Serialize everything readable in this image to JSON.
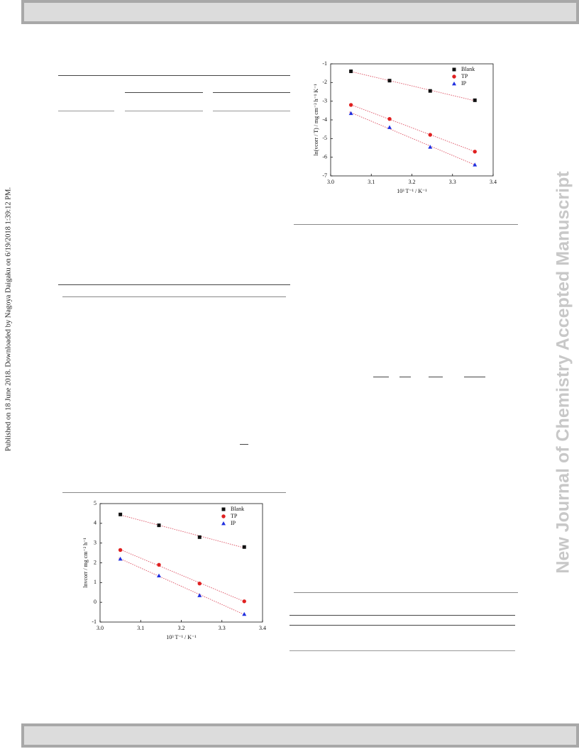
{
  "side_note": "Published on 18 June 2018. Downloaded by Nagoya Daigaku on 6/19/2018 1:39:12 PM.",
  "watermark": "New Journal of Chemistry Accepted Manuscript",
  "chart_data": [
    {
      "type": "scatter",
      "ylabel": "ln(vcorr / T) / mg cm⁻² h⁻¹ K⁻¹",
      "xlabel": "10³ T⁻¹ / K⁻¹",
      "xlim": [
        3.0,
        3.4
      ],
      "xticks": [
        {
          "value": 3.0,
          "label": "3.0"
        },
        3.1,
        3.2,
        3.3,
        {
          "value": 3.4,
          "label": "3.4"
        }
      ],
      "ylim": [
        -7,
        -1
      ],
      "yticks": [
        -7,
        -6,
        -5,
        -4,
        -3,
        -2,
        -1
      ],
      "x": [
        3.05,
        3.145,
        3.245,
        3.355
      ],
      "legend": "upper right",
      "fit_line_color": "#e06070",
      "series": [
        {
          "name": "Blank",
          "color": "#111111",
          "marker": "square",
          "values": [
            -1.4,
            -1.9,
            -2.45,
            -2.95
          ]
        },
        {
          "name": "TP",
          "color": "#e02020",
          "marker": "circle",
          "values": [
            -3.2,
            -3.95,
            -4.8,
            -5.7
          ]
        },
        {
          "name": "IP",
          "color": "#2030e0",
          "marker": "triangle",
          "values": [
            -3.65,
            -4.4,
            -5.45,
            -6.4
          ]
        }
      ]
    },
    {
      "type": "scatter",
      "ylabel": "lnvcorr / mg cm⁻² h⁻¹",
      "xlabel": "10³ T⁻¹ / K⁻¹",
      "xlim": [
        3.0,
        3.4
      ],
      "xticks": [
        {
          "value": 3.0,
          "label": "3.0"
        },
        3.1,
        3.2,
        3.3,
        {
          "value": 3.4,
          "label": "3.4"
        }
      ],
      "ylim": [
        -1,
        5
      ],
      "yticks": [
        -1,
        0,
        1,
        2,
        3,
        4,
        5
      ],
      "x": [
        3.05,
        3.145,
        3.245,
        3.355
      ],
      "legend": "upper right",
      "fit_line_color": "#e06070",
      "series": [
        {
          "name": "Blank",
          "color": "#111111",
          "marker": "square",
          "values": [
            4.45,
            3.9,
            3.3,
            2.8
          ]
        },
        {
          "name": "TP",
          "color": "#e02020",
          "marker": "circle",
          "values": [
            2.65,
            1.9,
            0.95,
            0.05
          ]
        },
        {
          "name": "IP",
          "color": "#2030e0",
          "marker": "triangle",
          "values": [
            2.2,
            1.35,
            0.35,
            -0.6
          ]
        }
      ]
    }
  ]
}
